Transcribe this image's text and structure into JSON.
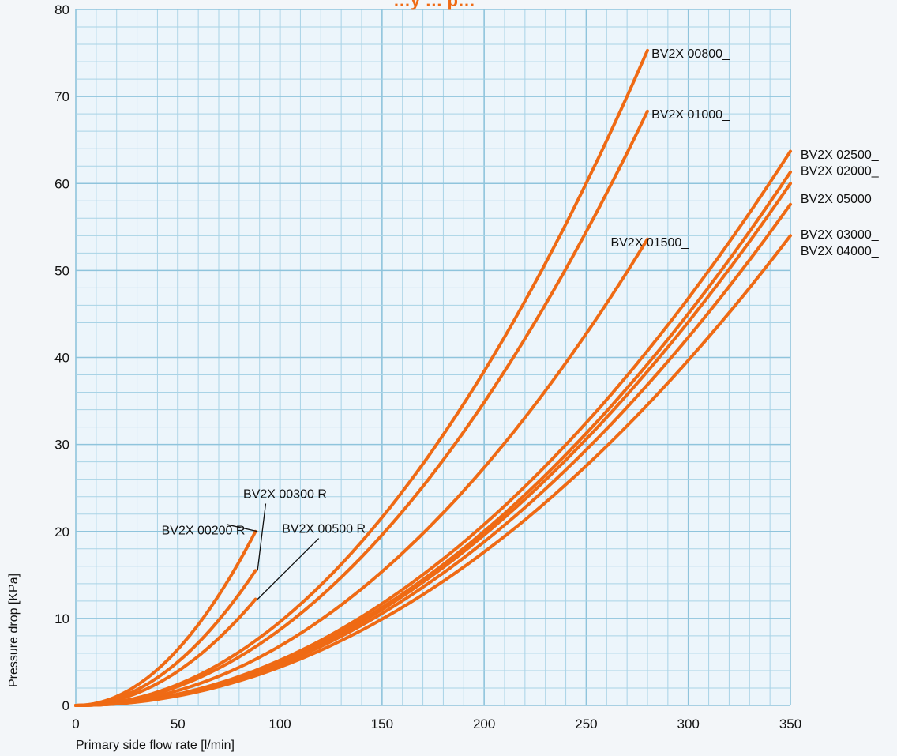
{
  "chart_data": {
    "type": "line",
    "title": "…y … p…",
    "xlabel": "Primary side flow rate [l/min]",
    "ylabel": "Pressure drop [KPa]",
    "xlim": [
      0,
      350
    ],
    "ylim": [
      0,
      80
    ],
    "x_ticks": [
      "0",
      "50",
      "100",
      "150",
      "200",
      "250",
      "300",
      "350"
    ],
    "y_ticks": [
      "0",
      "10",
      "20",
      "30",
      "40",
      "50",
      "60",
      "70",
      "80"
    ],
    "grid": true,
    "colors": {
      "curve": "#ef6a14",
      "grid_major": "#8fc4dc",
      "grid_minor": "#a9d3e6",
      "plot_bg": "#ecf5fb"
    },
    "series": [
      {
        "name": "BV2X 00200 R",
        "x": [
          0,
          10,
          20,
          30,
          40,
          50,
          60,
          70,
          80,
          88
        ],
        "y": [
          0,
          0.26,
          1.03,
          2.33,
          4.13,
          6.46,
          9.3,
          12.66,
          16.53,
          20
        ]
      },
      {
        "name": "BV2X 00300 R",
        "x": [
          0,
          10,
          20,
          30,
          40,
          50,
          60,
          70,
          80,
          88
        ],
        "y": [
          0,
          0.2,
          0.8,
          1.8,
          3.2,
          5,
          7.2,
          9.8,
          12.8,
          15.5
        ]
      },
      {
        "name": "BV2X 00500 R",
        "x": [
          0,
          10,
          20,
          30,
          40,
          50,
          60,
          70,
          80,
          88
        ],
        "y": [
          0,
          0.16,
          0.63,
          1.41,
          2.51,
          3.92,
          5.65,
          7.69,
          10.04,
          12.2
        ]
      },
      {
        "name": "BV2X 00800_",
        "x": [
          0,
          25,
          50,
          75,
          100,
          125,
          150,
          175,
          200,
          225,
          250,
          280
        ],
        "y": [
          0,
          0.6,
          2.4,
          5.4,
          9.6,
          15,
          21.6,
          29.4,
          38.4,
          48.6,
          60,
          75.3
        ]
      },
      {
        "name": "BV2X 01000_",
        "x": [
          0,
          25,
          50,
          75,
          100,
          125,
          150,
          175,
          200,
          225,
          250,
          280
        ],
        "y": [
          0,
          0.54,
          2.18,
          4.9,
          8.71,
          13.61,
          19.6,
          26.67,
          34.84,
          44.09,
          54.43,
          68.3
        ]
      },
      {
        "name": "BV2X 01500_",
        "x": [
          0,
          25,
          50,
          75,
          100,
          125,
          150,
          175,
          200,
          225,
          250,
          280
        ],
        "y": [
          0,
          0.43,
          1.71,
          3.84,
          6.83,
          10.67,
          15.37,
          20.92,
          27.33,
          34.58,
          42.7,
          53.6
        ]
      },
      {
        "name": "BV2X 02500_",
        "x": [
          0,
          50,
          100,
          150,
          200,
          250,
          300,
          350
        ],
        "y": [
          0,
          1.3,
          5.2,
          11.7,
          20.8,
          32.5,
          46.8,
          63.7
        ]
      },
      {
        "name": "BV2X 02000_",
        "x": [
          0,
          50,
          100,
          150,
          200,
          250,
          300,
          350
        ],
        "y": [
          0,
          1.25,
          5.01,
          11.26,
          20.03,
          31.29,
          45.06,
          61.3
        ]
      },
      {
        "name": "BV2X 05000_",
        "x": [
          0,
          50,
          100,
          150,
          200,
          250,
          300,
          350
        ],
        "y": [
          0,
          1.22,
          4.9,
          11.02,
          19.59,
          30.61,
          44.08,
          60
        ]
      },
      {
        "name": "BV2X 03000_",
        "x": [
          0,
          50,
          100,
          150,
          200,
          250,
          300,
          350
        ],
        "y": [
          0,
          1.18,
          4.7,
          10.58,
          18.8,
          29.39,
          42.32,
          57.6
        ]
      },
      {
        "name": "BV2X 04000_",
        "x": [
          0,
          50,
          100,
          150,
          200,
          250,
          300,
          350
        ],
        "y": [
          0,
          1.1,
          4.41,
          9.92,
          17.63,
          27.55,
          39.67,
          54
        ]
      }
    ],
    "annotations": [
      {
        "text": "BV2X 00800_",
        "x": 282,
        "y": 75
      },
      {
        "text": "BV2X 01000_",
        "x": 282,
        "y": 68
      },
      {
        "text": "BV2X 01500_",
        "x": 262,
        "y": 53.3
      },
      {
        "text": "BV2X 02500_",
        "x": 355,
        "y": 63.4
      },
      {
        "text": "BV2X 02000_",
        "x": 355,
        "y": 61.5
      },
      {
        "text": "BV2X 05000_",
        "x": 355,
        "y": 58.3
      },
      {
        "text": "BV2X 03000_",
        "x": 355,
        "y": 54.2
      },
      {
        "text": "BV2X 04000_",
        "x": 355,
        "y": 52.3
      },
      {
        "text": "BV2X 00200 R",
        "x": 42,
        "y": 20.2
      },
      {
        "text": "BV2X 00300 R",
        "x": 82,
        "y": 24.4
      },
      {
        "text": "BV2X 00500 R",
        "x": 101,
        "y": 20.4
      }
    ],
    "leaders": [
      {
        "from": [
          89,
          20
        ],
        "to": [
          74,
          20.8
        ]
      },
      {
        "from": [
          89,
          15.5
        ],
        "to": [
          93,
          23.2
        ]
      },
      {
        "from": [
          89,
          12.2
        ],
        "to": [
          119,
          19.2
        ]
      }
    ]
  }
}
